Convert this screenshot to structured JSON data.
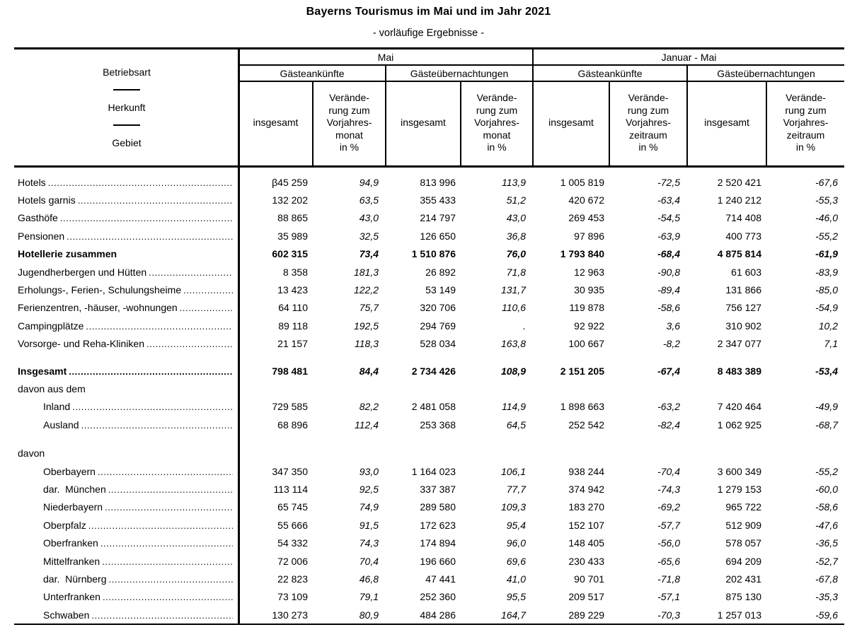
{
  "title": "Bayerns Tourismus im Mai und im Jahr 2021",
  "subtitle": "- vorläufige Ergebnisse -",
  "header": {
    "stub": [
      "Betriebsart",
      "Herkunft",
      "Gebiet"
    ],
    "groups": [
      "Mai",
      "Januar - Mai"
    ],
    "subgroups": [
      "Gästeankünfte",
      "Gästeübernachtungen",
      "Gästeankünfte",
      "Gästeübernachtungen"
    ],
    "cols": [
      "insgesamt",
      "Verände-\nrung zum\nVorjahres-\nmonat\nin %",
      "insgesamt",
      "Verände-\nrung zum\nVorjahres-\nmonat\nin %",
      "insgesamt",
      "Verände-\nrung zum\nVorjahres-\nzeitraum\nin %",
      "insgesamt",
      "Verände-\nrung zum\nVorjahres-\nzeitraum\nin %"
    ]
  },
  "rows": [
    {
      "label": "Hotels",
      "dots": true,
      "values": [
        "β45 259",
        "94,9",
        "813 996",
        "113,9",
        "1 005 819",
        "-72,5",
        "2 520 421",
        "-67,6"
      ]
    },
    {
      "label": "Hotels garnis",
      "dots": true,
      "values": [
        "132 202",
        "63,5",
        "355 433",
        "51,2",
        "420 672",
        "-63,4",
        "1 240 212",
        "-55,3"
      ]
    },
    {
      "label": "Gasthöfe",
      "dots": true,
      "values": [
        "88 865",
        "43,0",
        "214 797",
        "43,0",
        "269 453",
        "-54,5",
        "714 408",
        "-46,0"
      ]
    },
    {
      "label": "Pensionen",
      "dots": true,
      "values": [
        "35 989",
        "32,5",
        "126 650",
        "36,8",
        "97 896",
        "-63,9",
        "400 773",
        "-55,2"
      ]
    },
    {
      "label": "Hotellerie zusammen",
      "bold": true,
      "align": "right",
      "values": [
        "602 315",
        "73,4",
        "1 510 876",
        "76,0",
        "1 793 840",
        "-68,4",
        "4 875 814",
        "-61,9"
      ]
    },
    {
      "label": "Jugendherbergen und Hütten",
      "dots": true,
      "values": [
        "8 358",
        "181,3",
        "26 892",
        "71,8",
        "12 963",
        "-90,8",
        "61 603",
        "-83,9"
      ]
    },
    {
      "label": "Erholungs-, Ferien-, Schulungsheime",
      "dots": true,
      "values": [
        "13 423",
        "122,2",
        "53 149",
        "131,7",
        "30 935",
        "-89,4",
        "131 866",
        "-85,0"
      ]
    },
    {
      "label": "Ferienzentren, -häuser, -wohnungen",
      "dots": true,
      "values": [
        "64 110",
        "75,7",
        "320 706",
        "110,6",
        "119 878",
        "-58,6",
        "756 127",
        "-54,9"
      ]
    },
    {
      "label": "Campingplätze",
      "dots": true,
      "values": [
        "89 118",
        "192,5",
        "294 769",
        ".",
        "92 922",
        "3,6",
        "310 902",
        "10,2"
      ]
    },
    {
      "label": "Vorsorge- und Reha-Kliniken",
      "dots": true,
      "values": [
        "21 157",
        "118,3",
        "528 034",
        "163,8",
        "100 667",
        "-8,2",
        "2 347 077",
        "7,1"
      ]
    },
    {
      "type": "spacer",
      "h": 13
    },
    {
      "label": "Insgesamt",
      "bold": true,
      "dots": true,
      "values": [
        "798 481",
        "84,4",
        "2 734 426",
        "108,9",
        "2 151 205",
        "-67,4",
        "8 483 389",
        "-53,4"
      ]
    },
    {
      "label": "davon aus dem",
      "values": []
    },
    {
      "label": "Inland",
      "indent": true,
      "dots": true,
      "values": [
        "729 585",
        "82,2",
        "2 481 058",
        "114,9",
        "1 898 663",
        "-63,2",
        "7 420 464",
        "-49,9"
      ]
    },
    {
      "label": "Ausland",
      "indent": true,
      "dots": true,
      "values": [
        "68 896",
        "112,4",
        "253 368",
        "64,5",
        "252 542",
        "-82,4",
        "1 062 925",
        "-68,7"
      ]
    },
    {
      "type": "spacer",
      "h": 15
    },
    {
      "label": "davon",
      "values": []
    },
    {
      "label": "Oberbayern",
      "indent": true,
      "dots": true,
      "values": [
        "347 350",
        "93,0",
        "1 164 023",
        "106,1",
        "938 244",
        "-70,4",
        "3 600 349",
        "-55,2"
      ]
    },
    {
      "label": "dar.  München",
      "indent": true,
      "dots": true,
      "values": [
        "113 114",
        "92,5",
        "337 387",
        "77,7",
        "374 942",
        "-74,3",
        "1 279 153",
        "-60,0"
      ]
    },
    {
      "label": "Niederbayern",
      "indent": true,
      "dots": true,
      "values": [
        "65 745",
        "74,9",
        "289 580",
        "109,3",
        "183 270",
        "-69,2",
        "965 722",
        "-58,6"
      ]
    },
    {
      "label": "Oberpfalz",
      "indent": true,
      "dots": true,
      "values": [
        "55 666",
        "91,5",
        "172 623",
        "95,4",
        "152 107",
        "-57,7",
        "512 909",
        "-47,6"
      ]
    },
    {
      "label": "Oberfranken",
      "indent": true,
      "dots": true,
      "values": [
        "54 332",
        "74,3",
        "174 894",
        "96,0",
        "148 405",
        "-56,0",
        "578 057",
        "-36,5"
      ]
    },
    {
      "label": "Mittelfranken",
      "indent": true,
      "dots": true,
      "values": [
        "72 006",
        "70,4",
        "196 660",
        "69,6",
        "230 433",
        "-65,6",
        "694 209",
        "-52,7"
      ]
    },
    {
      "label": "dar.  Nürnberg",
      "indent": true,
      "dots": true,
      "values": [
        "22 823",
        "46,8",
        "47 441",
        "41,0",
        "90 701",
        "-71,8",
        "202 431",
        "-67,8"
      ]
    },
    {
      "label": "Unterfranken",
      "indent": true,
      "dots": true,
      "values": [
        "73 109",
        "79,1",
        "252 360",
        "95,5",
        "209 517",
        "-57,1",
        "875 130",
        "-35,3"
      ]
    },
    {
      "label": "Schwaben",
      "indent": true,
      "dots": true,
      "values": [
        "130 273",
        "80,9",
        "484 286",
        "164,7",
        "289 229",
        "-70,3",
        "1 257 013",
        "-59,6"
      ]
    }
  ]
}
